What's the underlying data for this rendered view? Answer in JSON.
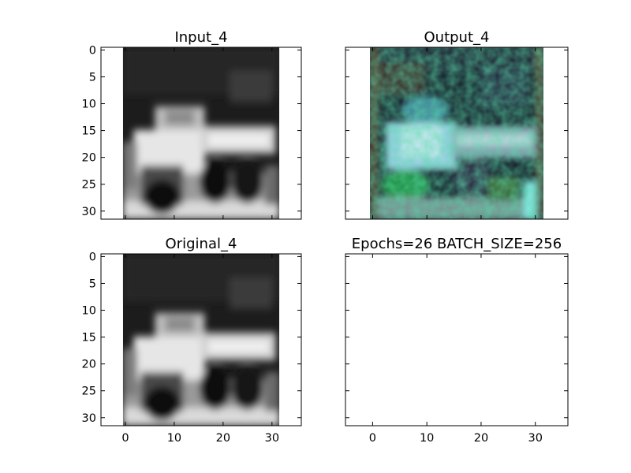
{
  "chart_data": [
    {
      "type": "image",
      "title": "Input_4",
      "image_size": [
        32,
        32
      ],
      "xlim": [
        -5,
        36
      ],
      "ylim": [
        31.5,
        -0.5
      ],
      "yticks": [
        0,
        5,
        10,
        15,
        20,
        25,
        30
      ],
      "image_description": "grayscale truck"
    },
    {
      "type": "image",
      "title": "Output_4",
      "image_size": [
        32,
        32
      ],
      "xlim": [
        -5,
        36
      ],
      "ylim": [
        31.5,
        -0.5
      ],
      "image_description": "noisy color reconstruction"
    },
    {
      "type": "image",
      "title": "Original_4",
      "image_size": [
        32,
        32
      ],
      "xlim": [
        -5,
        36
      ],
      "ylim": [
        31.5,
        -0.5
      ],
      "xticks": [
        0,
        10,
        20,
        30
      ],
      "yticks": [
        0,
        5,
        10,
        15,
        20,
        25,
        30
      ],
      "image_description": "grayscale truck"
    },
    {
      "type": "empty",
      "title": "Epochs=26 BATCH_SIZE=256",
      "xlim": [
        -5,
        36
      ],
      "ylim": [
        31.5,
        -0.5
      ],
      "xticks": [
        0,
        10,
        20,
        30
      ]
    }
  ]
}
